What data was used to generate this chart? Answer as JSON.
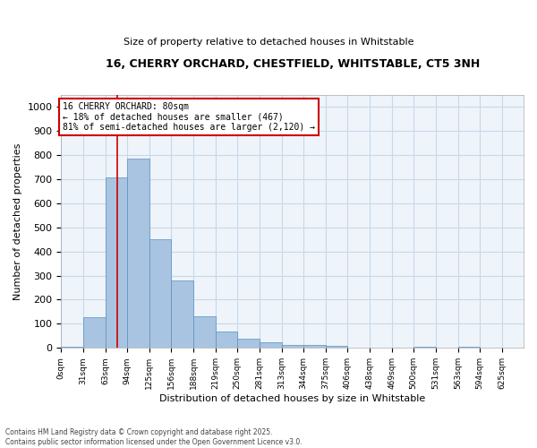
{
  "title_line1": "16, CHERRY ORCHARD, CHESTFIELD, WHITSTABLE, CT5 3NH",
  "title_line2": "Size of property relative to detached houses in Whitstable",
  "xlabel": "Distribution of detached houses by size in Whitstable",
  "ylabel": "Number of detached properties",
  "bin_labels": [
    "0sqm",
    "31sqm",
    "63sqm",
    "94sqm",
    "125sqm",
    "156sqm",
    "188sqm",
    "219sqm",
    "250sqm",
    "281sqm",
    "313sqm",
    "344sqm",
    "375sqm",
    "406sqm",
    "438sqm",
    "469sqm",
    "500sqm",
    "531sqm",
    "563sqm",
    "594sqm",
    "625sqm"
  ],
  "bar_values": [
    5,
    128,
    705,
    785,
    450,
    278,
    133,
    68,
    37,
    24,
    13,
    13,
    8,
    0,
    0,
    0,
    5,
    0,
    5,
    0,
    0
  ],
  "bar_color": "#a8c4e0",
  "bar_edge_color": "#5a8fc0",
  "property_line_x": 80,
  "annotation_title": "16 CHERRY ORCHARD: 80sqm",
  "annotation_line2": "← 18% of detached houses are smaller (467)",
  "annotation_line3": "81% of semi-detached houses are larger (2,120) →",
  "annotation_box_color": "#ffffff",
  "annotation_box_edge": "#cc0000",
  "vline_color": "#cc0000",
  "ylim": [
    0,
    1050
  ],
  "yticks": [
    0,
    100,
    200,
    300,
    400,
    500,
    600,
    700,
    800,
    900,
    1000
  ],
  "grid_color": "#c8d8e8",
  "bg_color": "#eef4fa",
  "footer_line1": "Contains HM Land Registry data © Crown copyright and database right 2025.",
  "footer_line2": "Contains public sector information licensed under the Open Government Licence v3.0.",
  "bin_edges": [
    0,
    31,
    63,
    94,
    125,
    156,
    188,
    219,
    250,
    281,
    313,
    344,
    375,
    406,
    438,
    469,
    500,
    531,
    563,
    594,
    625,
    656
  ]
}
